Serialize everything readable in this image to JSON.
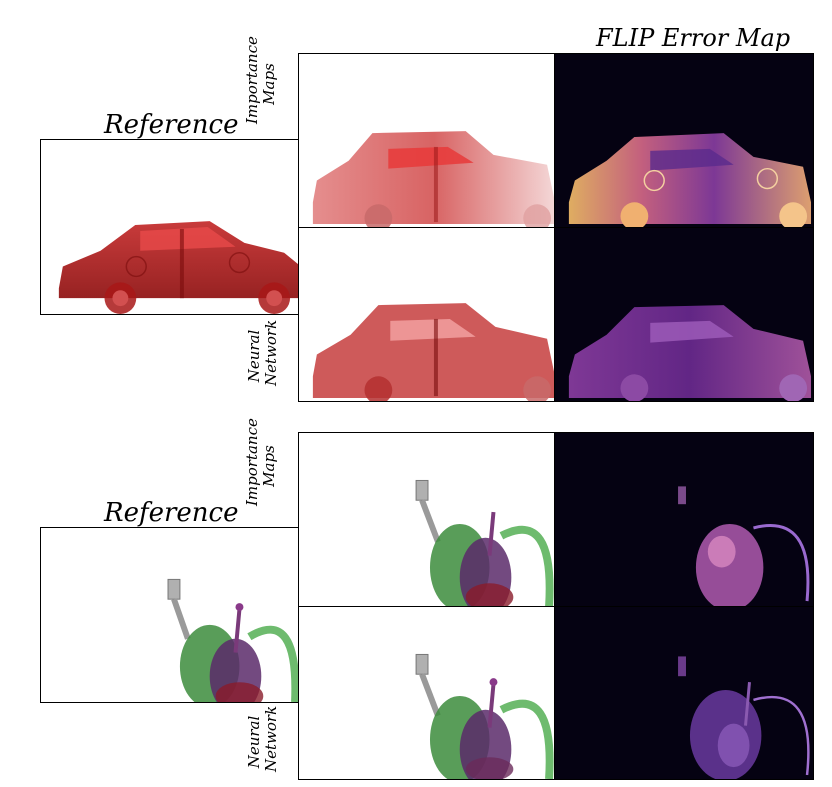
{
  "header": {
    "flip_title": "FLIP Error Map"
  },
  "car_row": {
    "reference_title": "Reference",
    "importance_label_line1": "Importance",
    "importance_label_line2": "Maps",
    "neural_label_line1": "Neural",
    "neural_label_line2": "Network"
  },
  "backpack_row": {
    "reference_title": "Reference",
    "importance_label_line1": "Importance",
    "importance_label_line2": "Maps",
    "neural_label_line1": "Neural",
    "neural_label_line2": "Network"
  }
}
